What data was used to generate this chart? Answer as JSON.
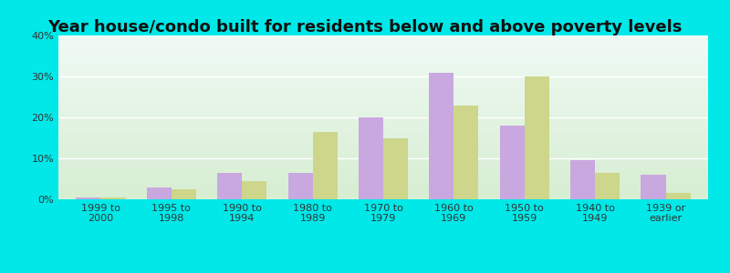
{
  "title": "Year house/condo built for residents below and above poverty levels",
  "categories": [
    "1999 to\n2000",
    "1995 to\n1998",
    "1990 to\n1994",
    "1980 to\n1989",
    "1970 to\n1979",
    "1960 to\n1969",
    "1950 to\n1959",
    "1940 to\n1949",
    "1939 or\nearlier"
  ],
  "below_poverty": [
    0.5,
    3.0,
    6.5,
    6.5,
    20.0,
    31.0,
    18.0,
    9.5,
    6.0
  ],
  "above_poverty": [
    0.5,
    2.5,
    4.5,
    16.5,
    15.0,
    23.0,
    30.0,
    6.5,
    1.5
  ],
  "below_color": "#c9a8e0",
  "above_color": "#cdd68a",
  "ylim": [
    0,
    40
  ],
  "yticks": [
    0,
    10,
    20,
    30,
    40
  ],
  "ytick_labels": [
    "0%",
    "10%",
    "20%",
    "30%",
    "40%"
  ],
  "outer_background": "#00e8e8",
  "grid_color": "#ffffff",
  "title_fontsize": 13,
  "tick_fontsize": 8,
  "legend_fontsize": 9,
  "bar_width": 0.35
}
